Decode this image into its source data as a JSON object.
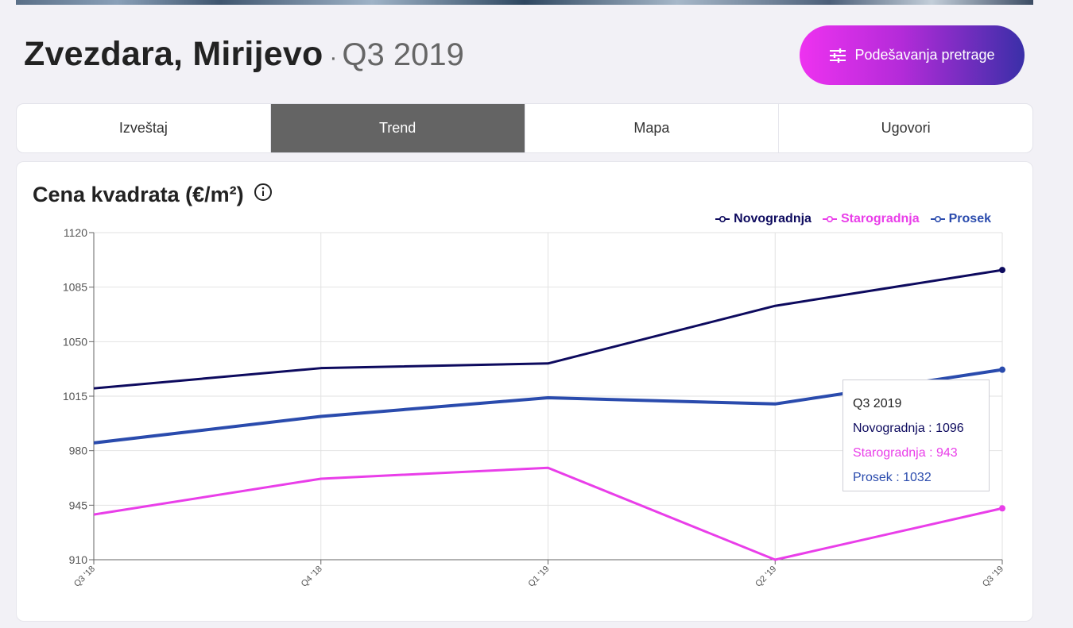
{
  "header": {
    "area_name": "Zvezdara, Mirijevo",
    "separator": "·",
    "period": "Q3 2019",
    "settings_button_label": "Podešavanja pretrage"
  },
  "tabs": [
    {
      "label": "Izveštaj",
      "active": false
    },
    {
      "label": "Trend",
      "active": true
    },
    {
      "label": "Mapa",
      "active": false
    },
    {
      "label": "Ugovori",
      "active": false
    }
  ],
  "card": {
    "title": "Cena kvadrata (€/m²)",
    "info_icon": "info-icon"
  },
  "tooltip": {
    "title": "Q3 2019",
    "rows": [
      {
        "label": "Novogradnja : 1096",
        "color": "#0d0a5e"
      },
      {
        "label": "Starogradnja : 943",
        "color": "#e93ee9"
      },
      {
        "label": "Prosek : 1032",
        "color": "#2a4bad"
      }
    ]
  },
  "chart_data": {
    "type": "line",
    "title": "Cena kvadrata (€/m²)",
    "xlabel": "",
    "ylabel": "",
    "categories": [
      "Q3 '18",
      "Q4 '18",
      "Q1 '19",
      "Q2 '19",
      "Q3 '19"
    ],
    "y_ticks": [
      910,
      945,
      980,
      1015,
      1050,
      1085,
      1120
    ],
    "ylim": [
      910,
      1120
    ],
    "grid": true,
    "legend_position": "top-right",
    "series": [
      {
        "name": "Novogradnja",
        "color": "#0d0a5e",
        "values": [
          1020,
          1033,
          1036,
          1073,
          1096
        ]
      },
      {
        "name": "Starogradnja",
        "color": "#e93ee9",
        "values": [
          939,
          962,
          969,
          910,
          943
        ]
      },
      {
        "name": "Prosek",
        "color": "#2a4bad",
        "values": [
          985,
          1002,
          1014,
          1010,
          1032
        ]
      }
    ]
  }
}
